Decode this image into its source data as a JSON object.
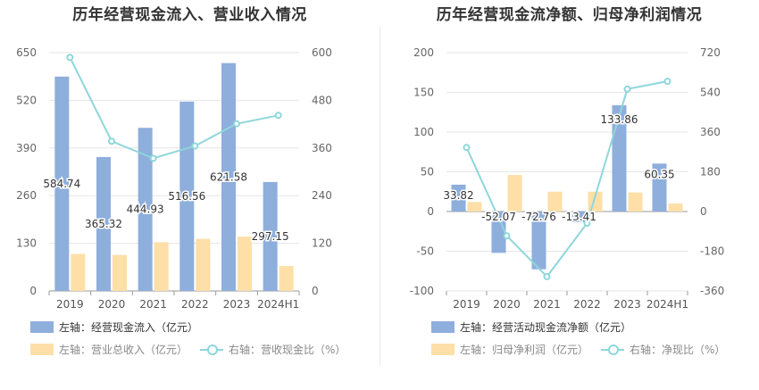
{
  "chart_data": [
    {
      "type": "bar+line",
      "title": "历年经营现金流入、营业收入情况",
      "categories": [
        "2019",
        "2020",
        "2021",
        "2022",
        "2023",
        "2024H1"
      ],
      "left_axis": {
        "ticks": [
          "0",
          "130",
          "260",
          "390",
          "520",
          "650"
        ],
        "ylim": [
          0,
          650
        ]
      },
      "right_axis": {
        "ticks": [
          "0",
          "120",
          "240",
          "360",
          "480",
          "600"
        ],
        "ylim": [
          0,
          600
        ]
      },
      "series": [
        {
          "name": "左轴：经营现金流入（亿元）",
          "kind": "bar",
          "axis": "left",
          "color": "#8eaedc",
          "values": [
            584.74,
            365.32,
            444.93,
            516.56,
            621.58,
            297.15
          ],
          "labels": [
            "584.74",
            "365.32",
            "444.93",
            "516.56",
            "621.58",
            "297.15"
          ]
        },
        {
          "name": "左轴：营业总收入（亿元）",
          "kind": "bar",
          "axis": "left",
          "color": "#fddfa7",
          "values": [
            101,
            98,
            133,
            142,
            148,
            68
          ]
        },
        {
          "name": "右轴：营收现金比（%）",
          "kind": "line",
          "axis": "right",
          "color": "#8fd6db",
          "values": [
            588,
            377,
            334,
            365,
            421,
            442
          ]
        }
      ],
      "legend_row1": [
        "左轴：经营现金流入（亿元）"
      ],
      "legend_row2": [
        "左轴：营业总收入（亿元）",
        "右轴：营收现金比（%）"
      ]
    },
    {
      "type": "bar+line",
      "title": "历年经营现金流净额、归母净利润情况",
      "categories": [
        "2019",
        "2020",
        "2021",
        "2022",
        "2023",
        "2024H1"
      ],
      "left_axis": {
        "ticks": [
          "-100",
          "-50",
          "0",
          "50",
          "100",
          "150",
          "200"
        ],
        "ylim": [
          -100,
          200
        ]
      },
      "right_axis": {
        "ticks": [
          "-360",
          "-180",
          "0",
          "180",
          "360",
          "540",
          "720"
        ],
        "ylim": [
          -360,
          720
        ]
      },
      "series": [
        {
          "name": "左轴：经营活动现金流净额（亿元）",
          "kind": "bar",
          "axis": "left",
          "color": "#8eaedc",
          "values": [
            33.82,
            -52.07,
            -72.76,
            -13.41,
            133.86,
            60.35
          ],
          "labels": [
            "33.82",
            "-52.07",
            "-72.76",
            "-13.41",
            "133.86",
            "60.35"
          ]
        },
        {
          "name": "左轴：归母净利润（亿元）",
          "kind": "bar",
          "axis": "left",
          "color": "#fddfa7",
          "values": [
            12,
            46,
            25,
            25,
            24,
            10
          ]
        },
        {
          "name": "右轴：净现比（%）",
          "kind": "line",
          "axis": "right",
          "color": "#8fd6db",
          "values": [
            290,
            -110,
            -295,
            -53,
            555,
            590
          ]
        }
      ],
      "legend_row1": [
        "左轴：经营活动现金流净额（亿元）"
      ],
      "legend_row2": [
        "左轴：归母净利润（亿元）",
        "右轴：净现比（%）"
      ]
    }
  ]
}
